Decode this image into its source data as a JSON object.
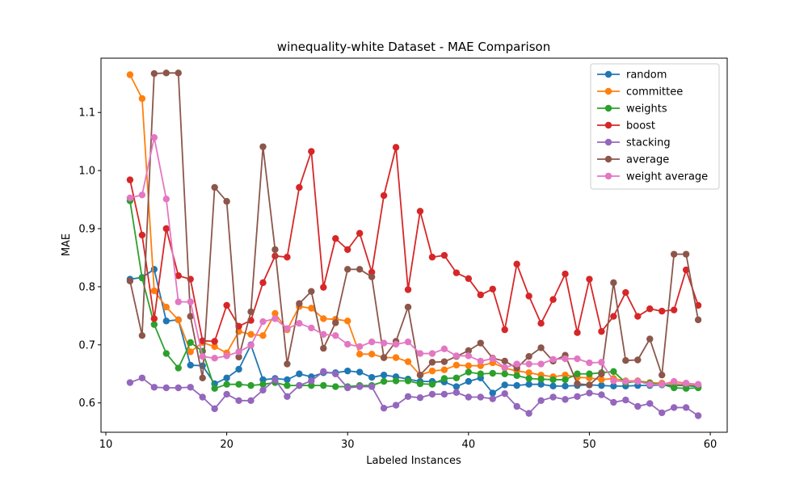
{
  "chart_data": {
    "type": "line",
    "title": "winequality-white Dataset - MAE Comparison",
    "xlabel": "Labeled Instances",
    "ylabel": "MAE",
    "xlim": [
      9.6,
      61.4
    ],
    "ylim": [
      0.5495,
      1.1935
    ],
    "xticks": [
      10,
      20,
      30,
      40,
      50,
      60
    ],
    "yticks": [
      0.6,
      0.7,
      0.8,
      0.9,
      1.0,
      1.1
    ],
    "ytick_labels": [
      "0.6",
      "0.7",
      "0.8",
      "0.9",
      "1.0",
      "1.1"
    ],
    "grid": false,
    "legend_position": "top-right",
    "x": [
      12,
      13,
      14,
      15,
      16,
      17,
      18,
      19,
      20,
      21,
      22,
      23,
      24,
      25,
      26,
      27,
      28,
      29,
      30,
      31,
      32,
      33,
      34,
      35,
      36,
      37,
      38,
      39,
      40,
      41,
      42,
      43,
      44,
      45,
      46,
      47,
      48,
      49,
      50,
      51,
      52,
      53,
      54,
      55,
      56,
      57,
      58,
      59
    ],
    "series": [
      {
        "name": "random",
        "color": "#1f77b4",
        "values": [
          0.813,
          0.816,
          0.83,
          0.741,
          0.743,
          0.665,
          0.664,
          0.633,
          0.643,
          0.658,
          0.7,
          0.64,
          0.642,
          0.64,
          0.65,
          0.645,
          0.652,
          0.652,
          0.655,
          0.653,
          0.644,
          0.648,
          0.645,
          0.641,
          0.637,
          0.637,
          0.636,
          0.628,
          0.637,
          0.643,
          0.617,
          0.631,
          0.63,
          0.632,
          0.632,
          0.629,
          0.629,
          0.63,
          0.631,
          0.63,
          0.629,
          0.629,
          0.63,
          0.63,
          0.631,
          0.63,
          0.63,
          0.628
        ]
      },
      {
        "name": "committee",
        "color": "#ff7f0e",
        "values": [
          1.165,
          1.124,
          0.793,
          0.765,
          0.743,
          0.688,
          0.704,
          0.697,
          0.686,
          0.723,
          0.718,
          0.716,
          0.754,
          0.726,
          0.766,
          0.763,
          0.745,
          0.744,
          0.741,
          0.684,
          0.684,
          0.678,
          0.678,
          0.671,
          0.648,
          0.655,
          0.657,
          0.665,
          0.664,
          0.664,
          0.669,
          0.66,
          0.655,
          0.652,
          0.648,
          0.645,
          0.648,
          0.644,
          0.643,
          0.64,
          0.642,
          0.638,
          0.638,
          0.635,
          0.634,
          0.633,
          0.632,
          0.631
        ]
      },
      {
        "name": "weights",
        "color": "#2ca02c",
        "values": [
          0.948,
          0.815,
          0.735,
          0.685,
          0.66,
          0.704,
          0.689,
          0.625,
          0.632,
          0.632,
          0.63,
          0.632,
          0.635,
          0.63,
          0.63,
          0.63,
          0.63,
          0.628,
          0.628,
          0.63,
          0.63,
          0.637,
          0.638,
          0.638,
          0.633,
          0.632,
          0.642,
          0.643,
          0.653,
          0.65,
          0.651,
          0.65,
          0.647,
          0.642,
          0.641,
          0.64,
          0.64,
          0.65,
          0.65,
          0.652,
          0.654,
          0.635,
          0.637,
          0.634,
          0.632,
          0.626,
          0.625,
          0.626
        ]
      },
      {
        "name": "boost",
        "color": "#d62728",
        "values": [
          0.984,
          0.889,
          0.745,
          0.9,
          0.819,
          0.813,
          0.707,
          0.706,
          0.768,
          0.732,
          0.742,
          0.807,
          0.853,
          0.851,
          0.971,
          1.033,
          0.799,
          0.883,
          0.864,
          0.892,
          0.825,
          0.957,
          1.04,
          0.795,
          0.93,
          0.851,
          0.854,
          0.824,
          0.814,
          0.786,
          0.796,
          0.726,
          0.839,
          0.784,
          0.737,
          0.778,
          0.822,
          0.721,
          0.813,
          0.723,
          0.749,
          0.79,
          0.749,
          0.762,
          0.758,
          0.76,
          0.829,
          0.768
        ]
      },
      {
        "name": "stacking",
        "color": "#9467bd",
        "values": [
          0.635,
          0.643,
          0.627,
          0.626,
          0.626,
          0.627,
          0.61,
          0.59,
          0.615,
          0.604,
          0.604,
          0.622,
          0.64,
          0.611,
          0.63,
          0.638,
          0.654,
          0.65,
          0.626,
          0.628,
          0.628,
          0.591,
          0.596,
          0.611,
          0.609,
          0.615,
          0.615,
          0.618,
          0.61,
          0.61,
          0.607,
          0.616,
          0.594,
          0.582,
          0.604,
          0.61,
          0.606,
          0.611,
          0.617,
          0.614,
          0.601,
          0.605,
          0.594,
          0.599,
          0.583,
          0.592,
          0.592,
          0.578
        ]
      },
      {
        "name": "average",
        "color": "#8c564b",
        "values": [
          0.81,
          0.716,
          1.167,
          1.168,
          1.168,
          0.749,
          0.643,
          0.971,
          0.947,
          0.679,
          0.757,
          1.041,
          0.864,
          0.667,
          0.771,
          0.792,
          0.694,
          0.738,
          0.83,
          0.83,
          0.817,
          0.678,
          0.706,
          0.765,
          0.648,
          0.67,
          0.671,
          0.68,
          0.69,
          0.703,
          0.677,
          0.672,
          0.66,
          0.68,
          0.695,
          0.672,
          0.682,
          0.633,
          0.631,
          0.65,
          0.807,
          0.673,
          0.674,
          0.71,
          0.648,
          0.856,
          0.856,
          0.743
        ]
      },
      {
        "name": "weight average",
        "color": "#e377c2",
        "values": [
          0.953,
          0.958,
          1.057,
          0.951,
          0.774,
          0.774,
          0.68,
          0.677,
          0.681,
          0.688,
          0.699,
          0.74,
          0.745,
          0.728,
          0.737,
          0.729,
          0.718,
          0.716,
          0.701,
          0.697,
          0.705,
          0.703,
          0.701,
          0.705,
          0.685,
          0.685,
          0.693,
          0.681,
          0.681,
          0.672,
          0.676,
          0.661,
          0.667,
          0.667,
          0.667,
          0.675,
          0.676,
          0.676,
          0.669,
          0.67,
          0.638,
          0.637,
          0.637,
          0.632,
          0.632,
          0.637,
          0.634,
          0.632
        ]
      }
    ]
  }
}
